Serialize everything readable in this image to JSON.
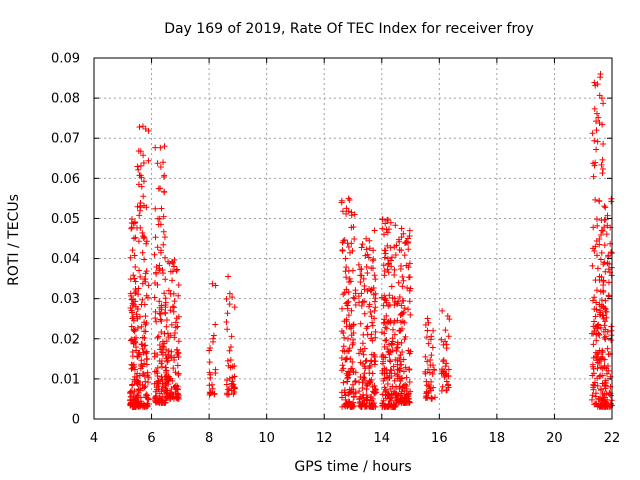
{
  "chart_data": {
    "type": "scatter",
    "title": "Day 169 of 2019, Rate Of TEC Index for receiver froy",
    "xlabel": "GPS time / hours",
    "ylabel": "ROTI / TECUs",
    "xlim": [
      4,
      22
    ],
    "ylim": [
      0,
      0.09
    ],
    "xticks": [
      4,
      6,
      8,
      10,
      12,
      14,
      16,
      18,
      20,
      22
    ],
    "yticks": [
      0,
      0.01,
      0.02,
      0.03,
      0.04,
      0.05,
      0.06,
      0.07,
      0.08,
      0.09
    ],
    "grid": true,
    "marker": "+",
    "color": "#ff0000",
    "clusters": [
      {
        "x_range": [
          5.25,
          5.5
        ],
        "y_range": [
          0.003,
          0.05
        ],
        "count": 120
      },
      {
        "x_range": [
          5.5,
          5.9
        ],
        "y_range": [
          0.003,
          0.073
        ],
        "count": 150
      },
      {
        "x_range": [
          6.1,
          6.5
        ],
        "y_range": [
          0.004,
          0.068
        ],
        "count": 140
      },
      {
        "x_range": [
          6.5,
          6.95
        ],
        "y_range": [
          0.005,
          0.04
        ],
        "count": 120
      },
      {
        "x_range": [
          8.0,
          8.25
        ],
        "y_range": [
          0.006,
          0.034
        ],
        "count": 25
      },
      {
        "x_range": [
          8.6,
          8.9
        ],
        "y_range": [
          0.006,
          0.038
        ],
        "count": 40
      },
      {
        "x_range": [
          12.6,
          13.1
        ],
        "y_range": [
          0.003,
          0.055
        ],
        "count": 150
      },
      {
        "x_range": [
          13.2,
          13.8
        ],
        "y_range": [
          0.003,
          0.047
        ],
        "count": 170
      },
      {
        "x_range": [
          14.0,
          14.5
        ],
        "y_range": [
          0.003,
          0.05
        ],
        "count": 170
      },
      {
        "x_range": [
          14.5,
          15.0
        ],
        "y_range": [
          0.004,
          0.048
        ],
        "count": 160
      },
      {
        "x_range": [
          15.5,
          15.85
        ],
        "y_range": [
          0.005,
          0.027
        ],
        "count": 45
      },
      {
        "x_range": [
          16.05,
          16.35
        ],
        "y_range": [
          0.007,
          0.029
        ],
        "count": 35
      },
      {
        "x_range": [
          21.3,
          21.7
        ],
        "y_range": [
          0.003,
          0.086
        ],
        "count": 160
      },
      {
        "x_range": [
          21.7,
          22.0
        ],
        "y_range": [
          0.003,
          0.055
        ],
        "count": 100
      }
    ],
    "notable_points": [
      {
        "x": 5.7,
        "y": 0.073
      },
      {
        "x": 6.45,
        "y": 0.068
      },
      {
        "x": 12.85,
        "y": 0.055
      },
      {
        "x": 13.75,
        "y": 0.047
      },
      {
        "x": 21.6,
        "y": 0.086
      },
      {
        "x": 21.65,
        "y": 0.08
      }
    ]
  }
}
